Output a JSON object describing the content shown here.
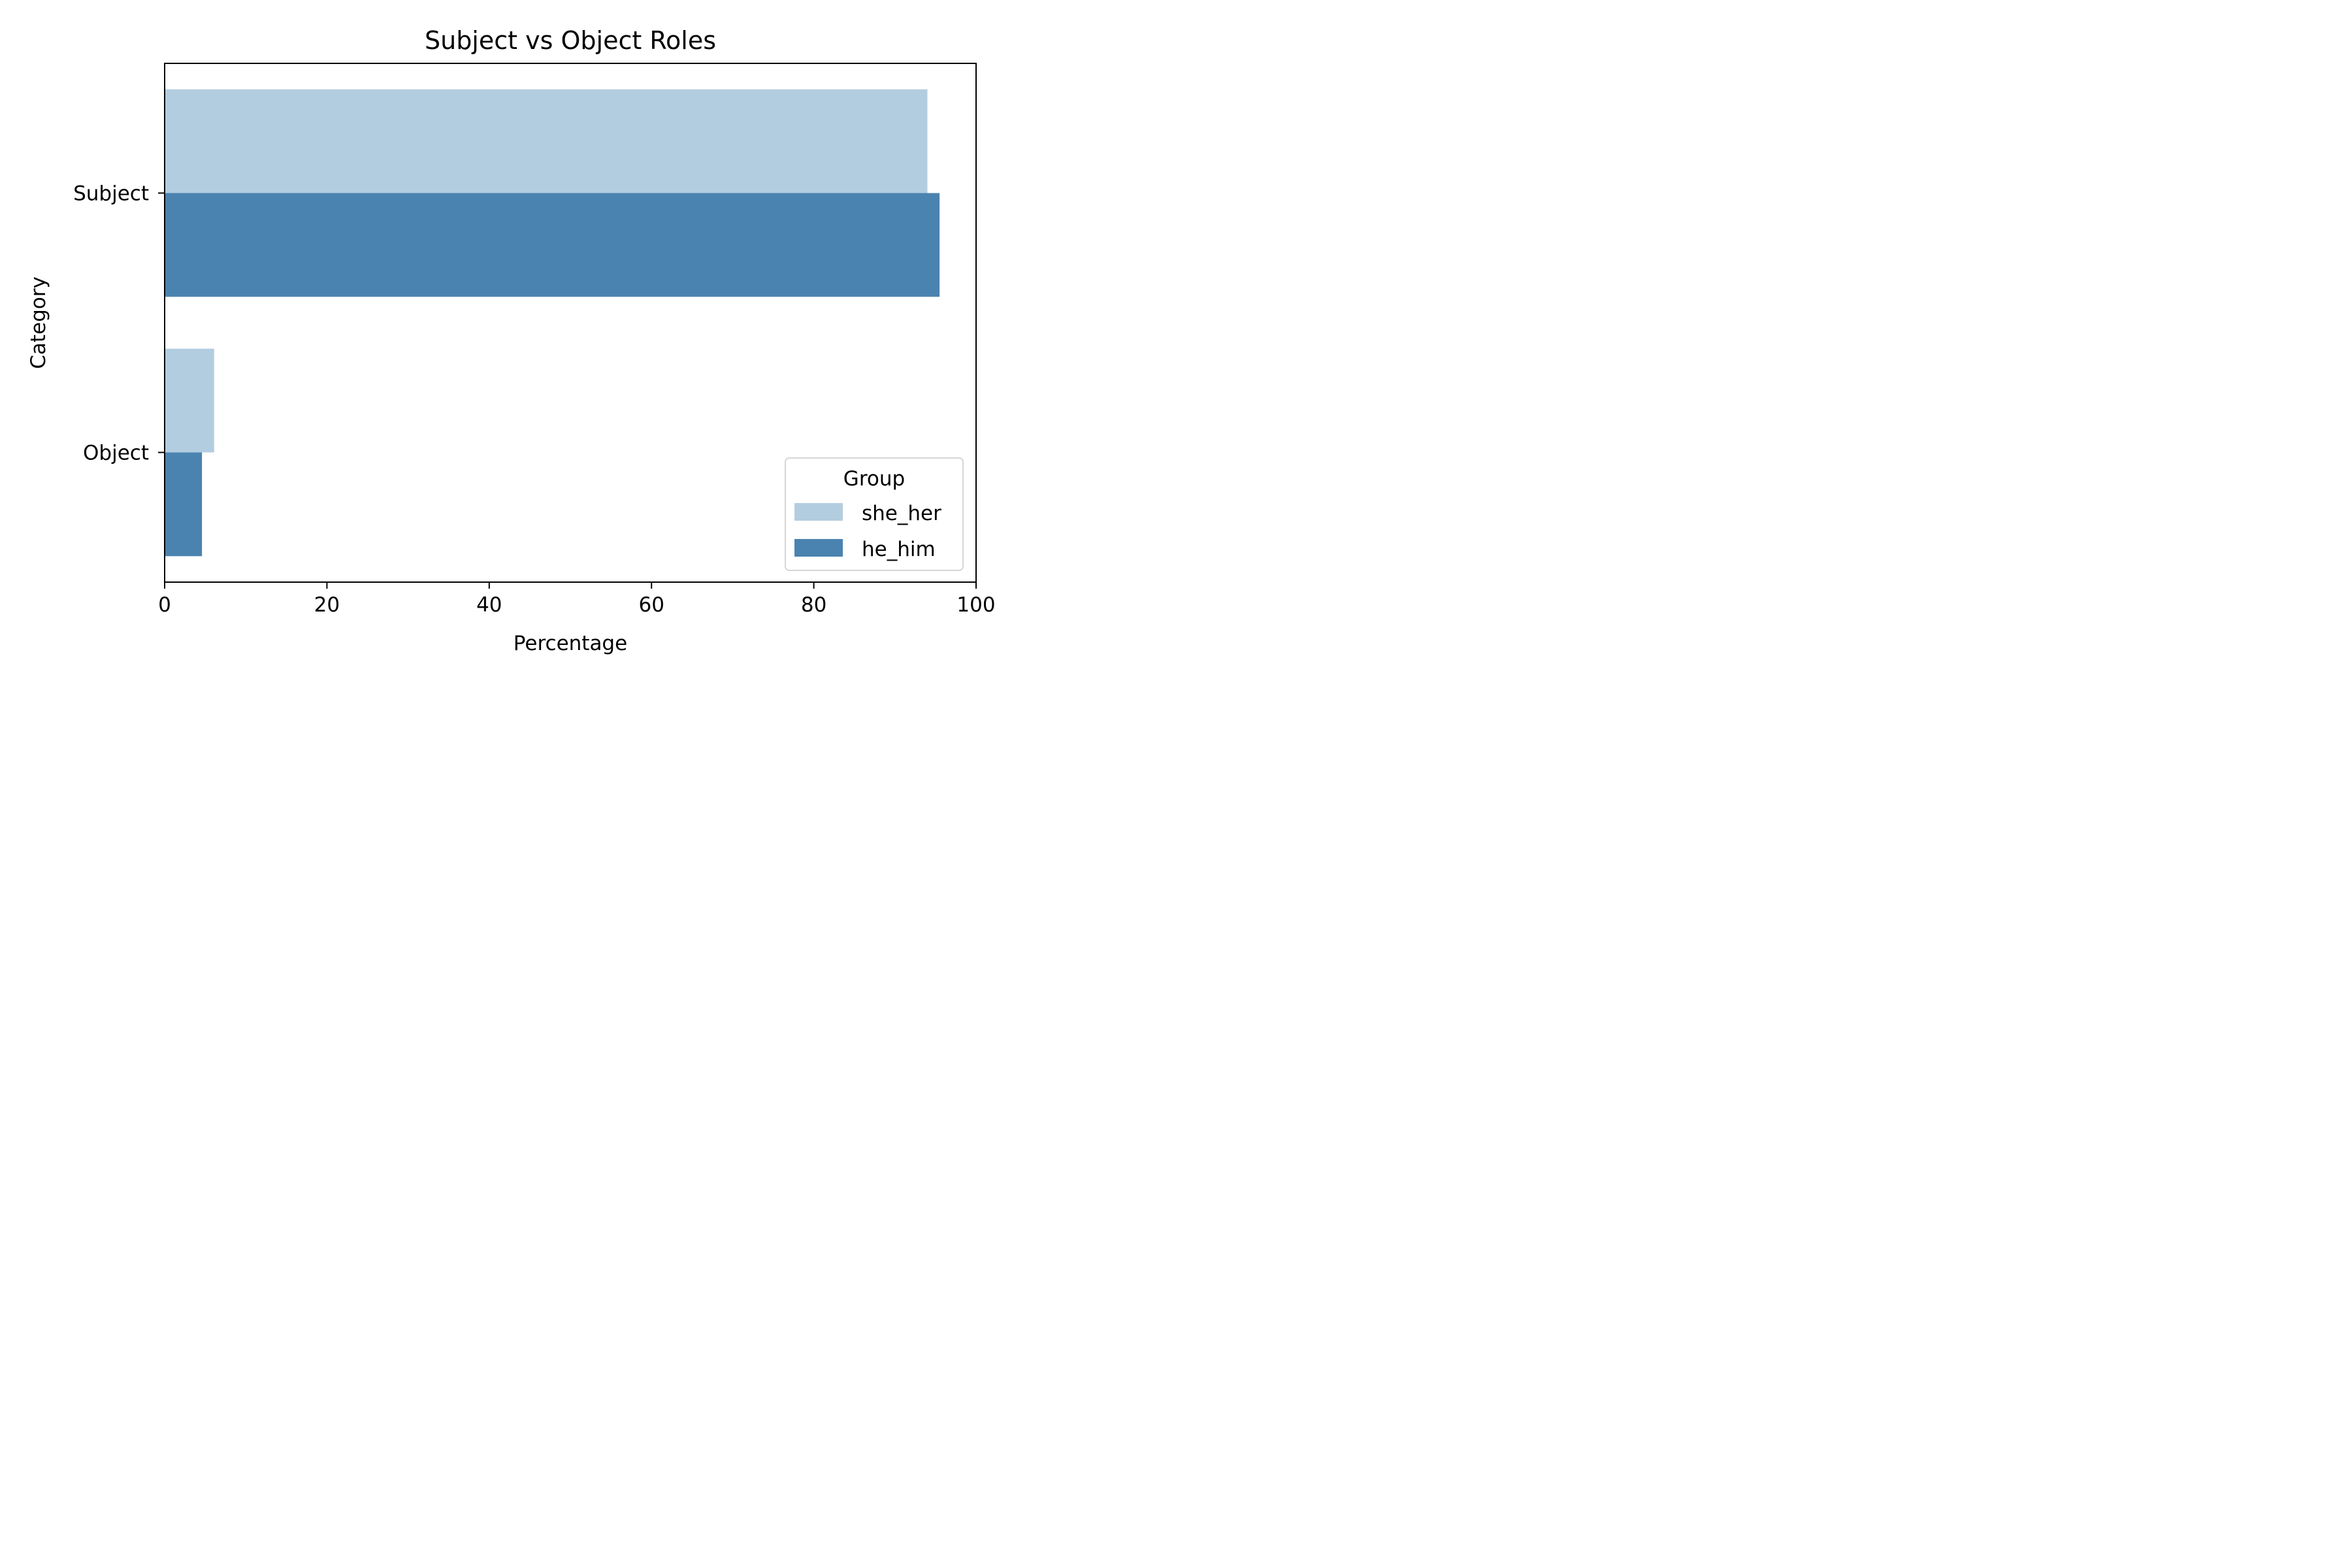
{
  "chart_data": {
    "type": "bar",
    "orientation": "horizontal",
    "title": "Subject vs Object Roles",
    "xlabel": "Percentage",
    "ylabel": "Category",
    "categories": [
      "Subject",
      "Object"
    ],
    "series": [
      {
        "name": "she_her",
        "color": "#b3cde0",
        "values": [
          94.0,
          6.1
        ]
      },
      {
        "name": "he_him",
        "color": "#4a83b0",
        "values": [
          95.5,
          4.6
        ]
      }
    ],
    "xlim": [
      0,
      100
    ],
    "xticks": [
      "0",
      "20",
      "40",
      "60",
      "80",
      "100"
    ],
    "grid": false,
    "legend": {
      "title": "Group",
      "placement": "lower-right"
    }
  }
}
